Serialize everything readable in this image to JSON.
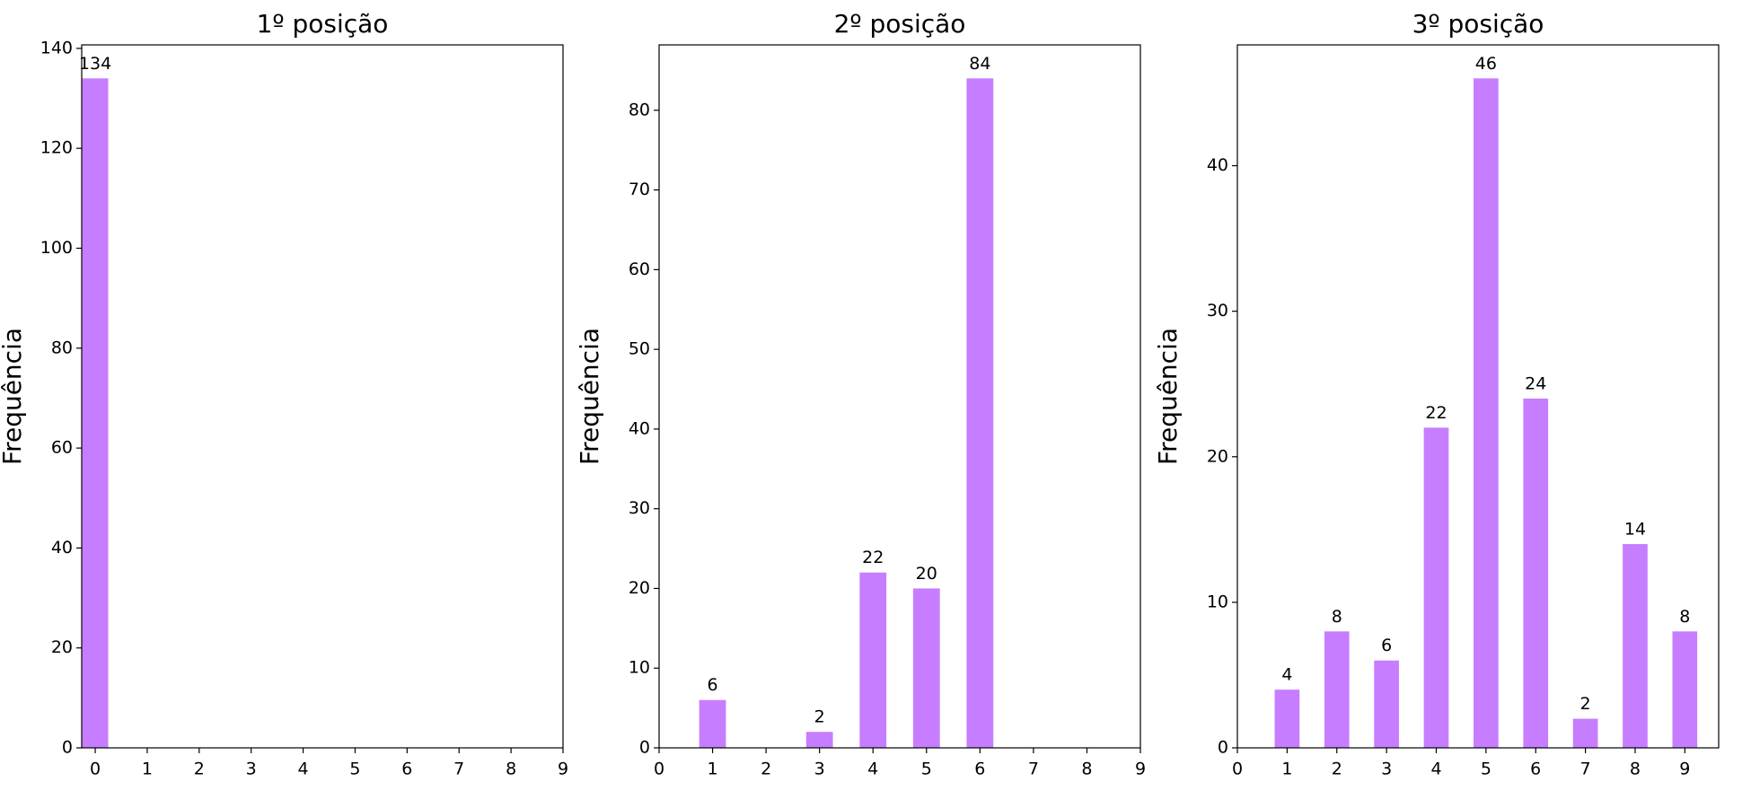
{
  "chart_data": [
    {
      "type": "bar",
      "title": "1º posição",
      "y_label": "Frequência",
      "color": "#c77dff",
      "x": [
        0
      ],
      "values": [
        134
      ],
      "xlim": [
        -0.26,
        9
      ],
      "ylim": [
        0,
        140.7
      ],
      "xticks": [
        0,
        1,
        2,
        3,
        4,
        5,
        6,
        7,
        8,
        9
      ],
      "yticks": [
        0,
        20,
        40,
        60,
        80,
        100,
        120,
        140
      ]
    },
    {
      "type": "bar",
      "title": "2º posição",
      "y_label": "Frequência",
      "color": "#c77dff",
      "x": [
        1,
        3,
        4,
        5,
        6
      ],
      "values": [
        6,
        2,
        22,
        20,
        84
      ],
      "xlim": [
        0,
        9
      ],
      "ylim": [
        0,
        88.2
      ],
      "xticks": [
        0,
        1,
        2,
        3,
        4,
        5,
        6,
        7,
        8,
        9
      ],
      "yticks": [
        0,
        10,
        20,
        30,
        40,
        50,
        60,
        70,
        80
      ]
    },
    {
      "type": "bar",
      "title": "3º posição",
      "y_label": "Frequência",
      "color": "#c77dff",
      "x": [
        1,
        2,
        3,
        4,
        5,
        6,
        7,
        8,
        9
      ],
      "values": [
        4,
        8,
        6,
        22,
        46,
        24,
        2,
        14,
        8
      ],
      "xlim": [
        0,
        9.68
      ],
      "ylim": [
        0,
        48.3
      ],
      "xticks": [
        0,
        1,
        2,
        3,
        4,
        5,
        6,
        7,
        8,
        9
      ],
      "yticks": [
        0,
        10,
        20,
        30,
        40
      ]
    }
  ]
}
